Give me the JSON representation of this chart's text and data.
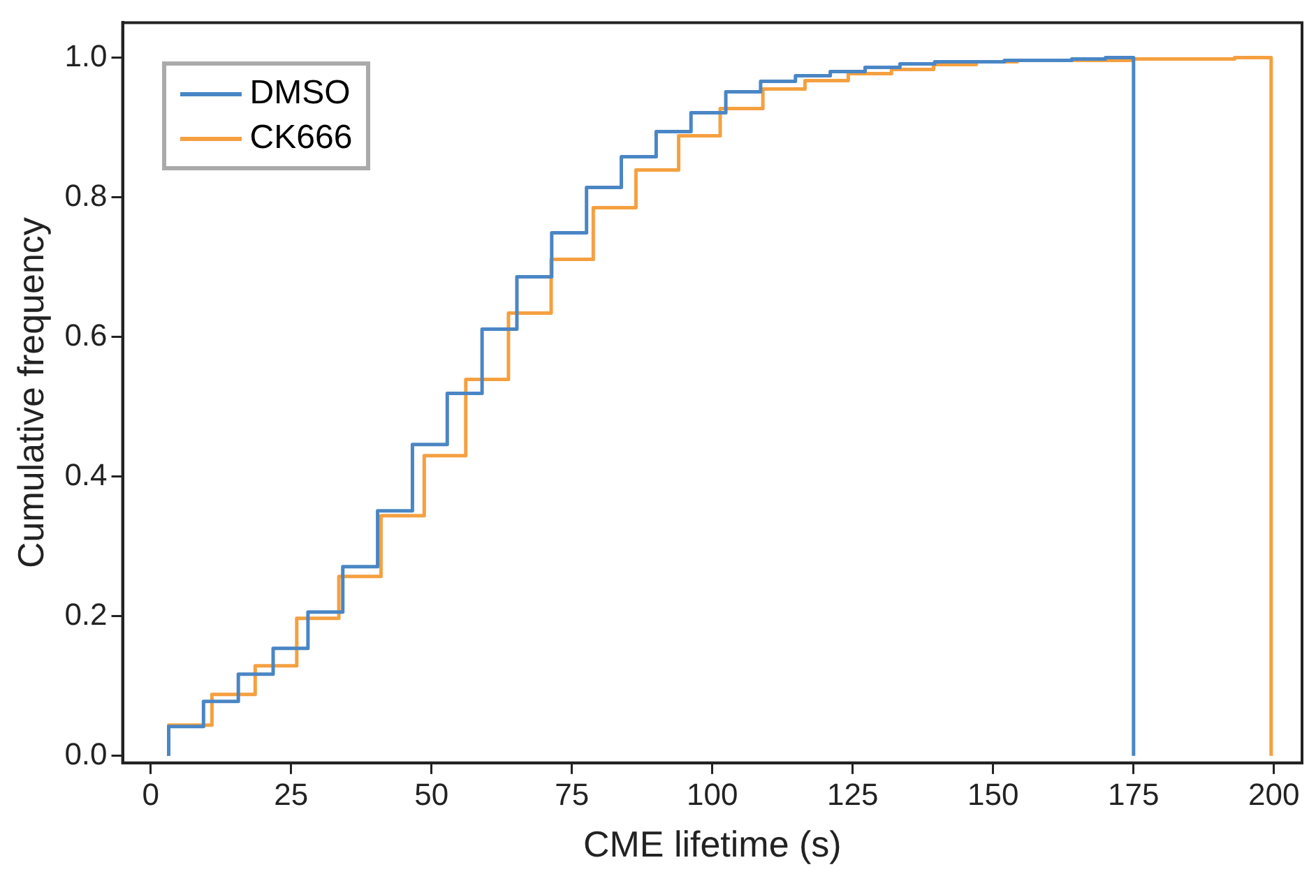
{
  "chart_data": {
    "type": "step",
    "xlabel": "CME lifetime (s)",
    "ylabel": "Cumulative frequency",
    "xlim": [
      -5,
      205
    ],
    "xticks": [
      0,
      25,
      50,
      75,
      100,
      125,
      150,
      175,
      200
    ],
    "ylim": [
      -0.01,
      1.05
    ],
    "yticks": [
      {
        "value": 0,
        "label": "0.0"
      },
      {
        "value": 0.2,
        "label": "0.2"
      },
      {
        "value": 0.4,
        "label": "0.4"
      },
      {
        "value": 0.6,
        "label": "0.6"
      },
      {
        "value": 0.8,
        "label": "0.8"
      },
      {
        "value": 1,
        "label": "1.0"
      }
    ],
    "legend": "top left",
    "line_style": "solid",
    "marker": "none",
    "series": [
      {
        "name": "DMSO",
        "color": "#4a86c5",
        "x": [
          3.2,
          3.2,
          9.4,
          15.6,
          21.8,
          28,
          34.2,
          40.4,
          46.6,
          52.8,
          59,
          65.2,
          71.4,
          77.6,
          83.8,
          90,
          96.2,
          102.4,
          108.6,
          114.8,
          121,
          127.2,
          133.4,
          139.6,
          152,
          164,
          170,
          175
        ],
        "values": [
          0,
          0.042,
          0.078,
          0.117,
          0.154,
          0.206,
          0.271,
          0.351,
          0.446,
          0.519,
          0.611,
          0.686,
          0.749,
          0.814,
          0.858,
          0.894,
          0.921,
          0.951,
          0.966,
          0.974,
          0.98,
          0.986,
          0.991,
          0.994,
          0.996,
          0.998,
          1,
          0
        ]
      },
      {
        "name": "CK666",
        "color": "#f5a040",
        "x": [
          3.2,
          3.2,
          10.9,
          18.6,
          26,
          33.5,
          41,
          48.7,
          56.1,
          63.7,
          71.3,
          78.8,
          86.4,
          94,
          101.4,
          109,
          116.5,
          124.2,
          131.9,
          139.4,
          147,
          154.3,
          175,
          193,
          199.5
        ],
        "values": [
          0,
          0.044,
          0.088,
          0.129,
          0.197,
          0.257,
          0.344,
          0.43,
          0.539,
          0.634,
          0.711,
          0.785,
          0.839,
          0.888,
          0.927,
          0.955,
          0.967,
          0.977,
          0.983,
          0.99,
          0.994,
          0.996,
          0.998,
          1,
          0
        ]
      }
    ]
  }
}
